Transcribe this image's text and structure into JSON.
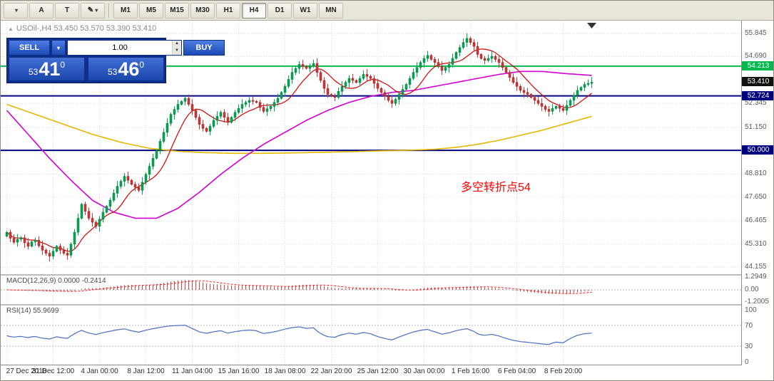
{
  "toolbar": {
    "dropdown_arrow": "▾",
    "text_tool": "A",
    "label_tool": "T",
    "draw_tool": "✎",
    "timeframes": [
      "M1",
      "M5",
      "M15",
      "M30",
      "H1",
      "H4",
      "D1",
      "W1",
      "MN"
    ],
    "active_timeframe": "H4"
  },
  "symbol": {
    "arrow": "▲",
    "label": "USOil-,H4 53.450 53.570 53.390 53.410"
  },
  "trade_panel": {
    "sell_label": "SELL",
    "buy_label": "BUY",
    "volume": "1.00",
    "dropdown_arrow": "▾",
    "spinner_up": "▲",
    "spinner_down": "▼",
    "bid": {
      "prefix": "53",
      "big": "41",
      "sup": "0"
    },
    "ask": {
      "prefix": "53",
      "big": "46",
      "sup": "0"
    }
  },
  "annotation": {
    "text": "多空转折点54",
    "color": "#ff0000"
  },
  "chart_data": {
    "type": "candlestick",
    "symbol": "USOil",
    "timeframe": "H4",
    "ohlc_current": {
      "open": "53.450",
      "high": "53.570",
      "low": "53.390",
      "close": "53.410"
    },
    "first_open": 45.7,
    "closes": [
      45.9,
      45.6,
      45.4,
      45.55,
      45.62,
      45.38,
      45.2,
      45.42,
      45.5,
      45.22,
      45.0,
      44.85,
      44.7,
      44.95,
      45.2,
      45.0,
      44.85,
      44.75,
      45.3,
      45.9,
      46.6,
      47.3,
      46.95,
      46.6,
      46.4,
      46.2,
      46.55,
      46.9,
      47.2,
      47.5,
      47.85,
      48.2,
      48.45,
      48.7,
      48.5,
      48.3,
      48.15,
      48.0,
      48.4,
      48.8,
      49.2,
      49.6,
      50.0,
      50.45,
      50.9,
      51.35,
      51.8,
      52.05,
      52.3,
      52.45,
      52.6,
      52.3,
      52.0,
      51.65,
      51.3,
      51.1,
      50.95,
      51.2,
      51.5,
      51.7,
      51.9,
      51.65,
      51.4,
      51.65,
      51.9,
      52.1,
      52.3,
      52.4,
      52.5,
      52.45,
      52.4,
      52.15,
      51.95,
      52.08,
      52.2,
      52.4,
      52.6,
      52.9,
      53.2,
      53.55,
      53.9,
      54.1,
      54.3,
      54.2,
      54.1,
      54.22,
      54.35,
      53.9,
      53.5,
      53.1,
      52.8,
      52.72,
      52.65,
      52.95,
      53.2,
      53.4,
      53.6,
      53.5,
      53.4,
      53.6,
      53.8,
      53.7,
      53.6,
      53.35,
      53.1,
      52.9,
      52.7,
      52.5,
      52.35,
      52.55,
      52.8,
      53.05,
      53.3,
      53.6,
      53.9,
      54.15,
      54.4,
      54.6,
      54.75,
      54.55,
      54.4,
      54.2,
      54.0,
      54.15,
      54.3,
      54.6,
      54.9,
      55.15,
      55.4,
      55.6,
      55.4,
      55.2,
      54.8,
      54.6,
      54.5,
      54.6,
      54.7,
      54.55,
      54.4,
      54.15,
      53.9,
      53.65,
      53.4,
      53.2,
      53.0,
      52.9,
      52.8,
      52.65,
      52.5,
      52.35,
      52.2,
      52.05,
      51.95,
      52.1,
      52.2,
      52.1,
      52.0,
      52.25,
      52.5,
      52.75,
      53.0,
      53.15,
      53.3,
      53.35,
      53.41
    ],
    "up_color": "#00a651",
    "down_color": "#d03535",
    "price_range": [
      43.8,
      56.49
    ],
    "price_axis_ticks": [
      55.845,
      54.69,
      52.345,
      51.15,
      50.0,
      48.81,
      47.65,
      46.465,
      45.31,
      44.155
    ],
    "hlines": [
      {
        "price": 54.213,
        "color": "#00b94c"
      },
      {
        "price": 52.724,
        "color": "#000080"
      },
      {
        "price": 50.0,
        "color": "#000080"
      }
    ],
    "badges": [
      {
        "price": 54.213,
        "text": "54.213",
        "bg": "#00b94c"
      },
      {
        "price": 53.41,
        "text": "53.410",
        "bg": "#111111"
      },
      {
        "price": 52.724,
        "text": "52.724",
        "bg": "#000080"
      },
      {
        "price": 50.0,
        "text": "50.000",
        "bg": "#000080"
      }
    ],
    "ma_fast": {
      "color": "#d40000",
      "window": 9
    },
    "ma_mid": {
      "color": "#d400d4",
      "points": [
        [
          0,
          52.0
        ],
        [
          6,
          50.8
        ],
        [
          12,
          49.6
        ],
        [
          18,
          48.5
        ],
        [
          24,
          47.5
        ],
        [
          30,
          46.9
        ],
        [
          36,
          46.6
        ],
        [
          42,
          46.6
        ],
        [
          48,
          47.1
        ],
        [
          54,
          47.9
        ],
        [
          60,
          48.8
        ],
        [
          66,
          49.6
        ],
        [
          72,
          50.3
        ],
        [
          78,
          50.9
        ],
        [
          84,
          51.5
        ],
        [
          90,
          52.0
        ],
        [
          96,
          52.4
        ],
        [
          102,
          52.7
        ],
        [
          108,
          52.9
        ],
        [
          114,
          53.0
        ],
        [
          120,
          53.2
        ],
        [
          126,
          53.4
        ],
        [
          132,
          53.6
        ],
        [
          138,
          53.8
        ],
        [
          144,
          53.95
        ],
        [
          150,
          53.95
        ],
        [
          156,
          53.85
        ],
        [
          164,
          53.75
        ]
      ]
    },
    "ma_slow": {
      "color": "#e6b800",
      "points": [
        [
          0,
          52.3
        ],
        [
          8,
          51.8
        ],
        [
          16,
          51.3
        ],
        [
          24,
          50.8
        ],
        [
          32,
          50.4
        ],
        [
          40,
          50.1
        ],
        [
          48,
          49.95
        ],
        [
          56,
          49.88
        ],
        [
          64,
          49.85
        ],
        [
          72,
          49.85
        ],
        [
          80,
          49.87
        ],
        [
          88,
          49.9
        ],
        [
          96,
          49.93
        ],
        [
          104,
          49.97
        ],
        [
          112,
          50.0
        ],
        [
          120,
          50.05
        ],
        [
          126,
          50.15
        ],
        [
          132,
          50.3
        ],
        [
          138,
          50.5
        ],
        [
          144,
          50.75
        ],
        [
          150,
          51.0
        ],
        [
          156,
          51.3
        ],
        [
          160,
          51.5
        ],
        [
          164,
          51.7
        ]
      ]
    },
    "time_labels": [
      "27 Dec 2018",
      "31 Dec 12:00",
      "4 Jan 00:00",
      "8 Jan 12:00",
      "11 Jan 04:00",
      "15 Jan 16:00",
      "18 Jan 08:00",
      "22 Jan 20:00",
      "25 Jan 12:00",
      "30 Jan 00:00",
      "1 Feb 16:00",
      "6 Feb 04:00",
      "8 Feb 20:00"
    ],
    "macd": {
      "label": "MACD(12,26,9) 0.0000 -0.2414",
      "fast": 12,
      "slow": 26,
      "signal": 9,
      "axis_labels": [
        {
          "text": "1.2949",
          "value": 1.2949
        },
        {
          "text": "0.00",
          "value": 0
        },
        {
          "text": "-1.2005",
          "value": -1.2005
        }
      ],
      "range": [
        -1.45,
        1.45
      ],
      "bar_color": "#b05a5a",
      "signal_color": "#ff2020"
    },
    "rsi": {
      "label": "RSI(14) 55.9699",
      "period": 14,
      "axis_labels": [
        100,
        70,
        30,
        0
      ],
      "levels": [
        70,
        30
      ],
      "color": "#4a6fc0"
    }
  }
}
